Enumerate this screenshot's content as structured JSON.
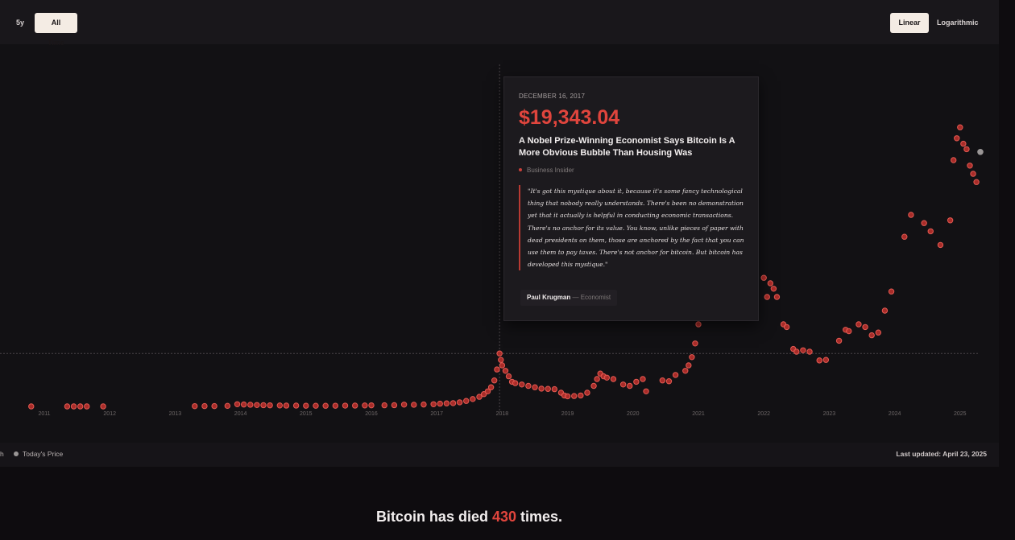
{
  "toolbar": {
    "range_buttons": [
      {
        "label": "5y",
        "active": false
      },
      {
        "label": "All Time",
        "active": true
      }
    ],
    "scale_buttons": [
      {
        "label": "Linear",
        "active": true
      },
      {
        "label": "Logarithmic",
        "active": false
      }
    ]
  },
  "tooltip": {
    "date": "DECEMBER 16, 2017",
    "price": "$19,343.04",
    "headline": "A Nobel Prize-Winning Economist Says Bitcoin Is A More Obvious Bubble Than Housing Was",
    "source": "Business Insider",
    "quote": "\"It's got this mystique about it, because it's some fancy technological thing that nobody really understands. There's been no demonstration yet that it actually is helpful in conducting economic transactions. There's no anchor for its value. You know, unlike pieces of paper with dead presidents on them, those are anchored by the fact that you can use them to pay taxes. There's not anchor for bitcoin. But bitcoin has developed this mystique.\"",
    "author": "Paul Krugman",
    "author_role": "— Economist"
  },
  "footer": {
    "legend_left": "h",
    "legend_today": "Today's Price",
    "last_updated": "Last updated: April 23, 2025"
  },
  "caption": {
    "prefix": "Bitcoin has died ",
    "count": "430",
    "suffix": " times."
  },
  "colors": {
    "accent": "#e0453d",
    "dot_fill": "#b9302b",
    "dot_stroke": "#e35a52",
    "today_dot": "#9a9696",
    "background": "#121114"
  },
  "chart_data": {
    "type": "scatter",
    "title": "",
    "xlabel": "",
    "ylabel": "",
    "xlim": [
      2010.5,
      2025.5
    ],
    "ylim": [
      0,
      110000
    ],
    "x_ticks": [
      "2011",
      "2012",
      "2013",
      "2014",
      "2015",
      "2016",
      "2017",
      "2018",
      "2019",
      "2020",
      "2021",
      "2022",
      "2023",
      "2024",
      "2025"
    ],
    "grid": false,
    "crosshair": {
      "x": 2017.96,
      "y": 19343
    },
    "series": [
      {
        "name": "",
        "points": [
          [
            2010.8,
            0
          ],
          [
            2011.35,
            0
          ],
          [
            2011.45,
            0
          ],
          [
            2011.55,
            0
          ],
          [
            2011.65,
            0
          ],
          [
            2011.9,
            0
          ],
          [
            2013.3,
            100
          ],
          [
            2013.45,
            120
          ],
          [
            2013.6,
            110
          ],
          [
            2013.8,
            200
          ],
          [
            2013.95,
            800
          ],
          [
            2014.05,
            700
          ],
          [
            2014.15,
            600
          ],
          [
            2014.25,
            500
          ],
          [
            2014.35,
            450
          ],
          [
            2014.45,
            400
          ],
          [
            2014.6,
            350
          ],
          [
            2014.7,
            300
          ],
          [
            2014.85,
            300
          ],
          [
            2015.0,
            250
          ],
          [
            2015.15,
            240
          ],
          [
            2015.3,
            230
          ],
          [
            2015.45,
            250
          ],
          [
            2015.6,
            280
          ],
          [
            2015.75,
            300
          ],
          [
            2015.9,
            350
          ],
          [
            2016.0,
            400
          ],
          [
            2016.2,
            420
          ],
          [
            2016.35,
            450
          ],
          [
            2016.5,
            650
          ],
          [
            2016.65,
            600
          ],
          [
            2016.8,
            700
          ],
          [
            2016.95,
            800
          ],
          [
            2017.05,
            1000
          ],
          [
            2017.15,
            1100
          ],
          [
            2017.25,
            1200
          ],
          [
            2017.35,
            1500
          ],
          [
            2017.45,
            2000
          ],
          [
            2017.55,
            2700
          ],
          [
            2017.65,
            3500
          ],
          [
            2017.72,
            4500
          ],
          [
            2017.78,
            5500
          ],
          [
            2017.83,
            7000
          ],
          [
            2017.88,
            9500
          ],
          [
            2017.92,
            13500
          ],
          [
            2017.96,
            19343
          ],
          [
            2017.98,
            17000
          ],
          [
            2018.0,
            15000
          ],
          [
            2018.05,
            13000
          ],
          [
            2018.1,
            11000
          ],
          [
            2018.15,
            9000
          ],
          [
            2018.2,
            8500
          ],
          [
            2018.3,
            8000
          ],
          [
            2018.4,
            7500
          ],
          [
            2018.5,
            7000
          ],
          [
            2018.6,
            6500
          ],
          [
            2018.7,
            6400
          ],
          [
            2018.8,
            6300
          ],
          [
            2018.9,
            5000
          ],
          [
            2018.95,
            4000
          ],
          [
            2019.0,
            3700
          ],
          [
            2019.1,
            3800
          ],
          [
            2019.2,
            4000
          ],
          [
            2019.3,
            5000
          ],
          [
            2019.4,
            7500
          ],
          [
            2019.45,
            10000
          ],
          [
            2019.5,
            12000
          ],
          [
            2019.55,
            11000
          ],
          [
            2019.6,
            10500
          ],
          [
            2019.7,
            10000
          ],
          [
            2019.85,
            8000
          ],
          [
            2019.95,
            7500
          ],
          [
            2020.05,
            9000
          ],
          [
            2020.15,
            10000
          ],
          [
            2020.2,
            5500
          ],
          [
            2020.45,
            9500
          ],
          [
            2020.55,
            9200
          ],
          [
            2020.65,
            11500
          ],
          [
            2020.8,
            13000
          ],
          [
            2020.85,
            15000
          ],
          [
            2020.9,
            18000
          ],
          [
            2020.95,
            23000
          ],
          [
            2021.0,
            30000
          ],
          [
            2021.2,
            50000
          ],
          [
            2021.7,
            45000
          ],
          [
            2022.0,
            47000
          ],
          [
            2022.05,
            40000
          ],
          [
            2022.1,
            45000
          ],
          [
            2022.15,
            43000
          ],
          [
            2022.2,
            40000
          ],
          [
            2022.3,
            30000
          ],
          [
            2022.35,
            29000
          ],
          [
            2022.45,
            21000
          ],
          [
            2022.5,
            20000
          ],
          [
            2022.6,
            20500
          ],
          [
            2022.7,
            20000
          ],
          [
            2022.85,
            16800
          ],
          [
            2022.95,
            17000
          ],
          [
            2023.15,
            24000
          ],
          [
            2023.25,
            28000
          ],
          [
            2023.3,
            27500
          ],
          [
            2023.45,
            30000
          ],
          [
            2023.55,
            29000
          ],
          [
            2023.65,
            26000
          ],
          [
            2023.75,
            27000
          ],
          [
            2023.85,
            35000
          ],
          [
            2023.95,
            42000
          ],
          [
            2024.15,
            62000
          ],
          [
            2024.25,
            70000
          ],
          [
            2024.45,
            67000
          ],
          [
            2024.55,
            64000
          ],
          [
            2024.7,
            59000
          ],
          [
            2024.85,
            68000
          ],
          [
            2024.9,
            90000
          ],
          [
            2024.95,
            98000
          ],
          [
            2025.0,
            102000
          ],
          [
            2025.05,
            96000
          ],
          [
            2025.1,
            94000
          ],
          [
            2025.15,
            88000
          ],
          [
            2025.2,
            85000
          ],
          [
            2025.25,
            82000
          ]
        ]
      },
      {
        "name": "Today's Price",
        "points": [
          [
            2025.31,
            93000
          ]
        ]
      }
    ]
  }
}
